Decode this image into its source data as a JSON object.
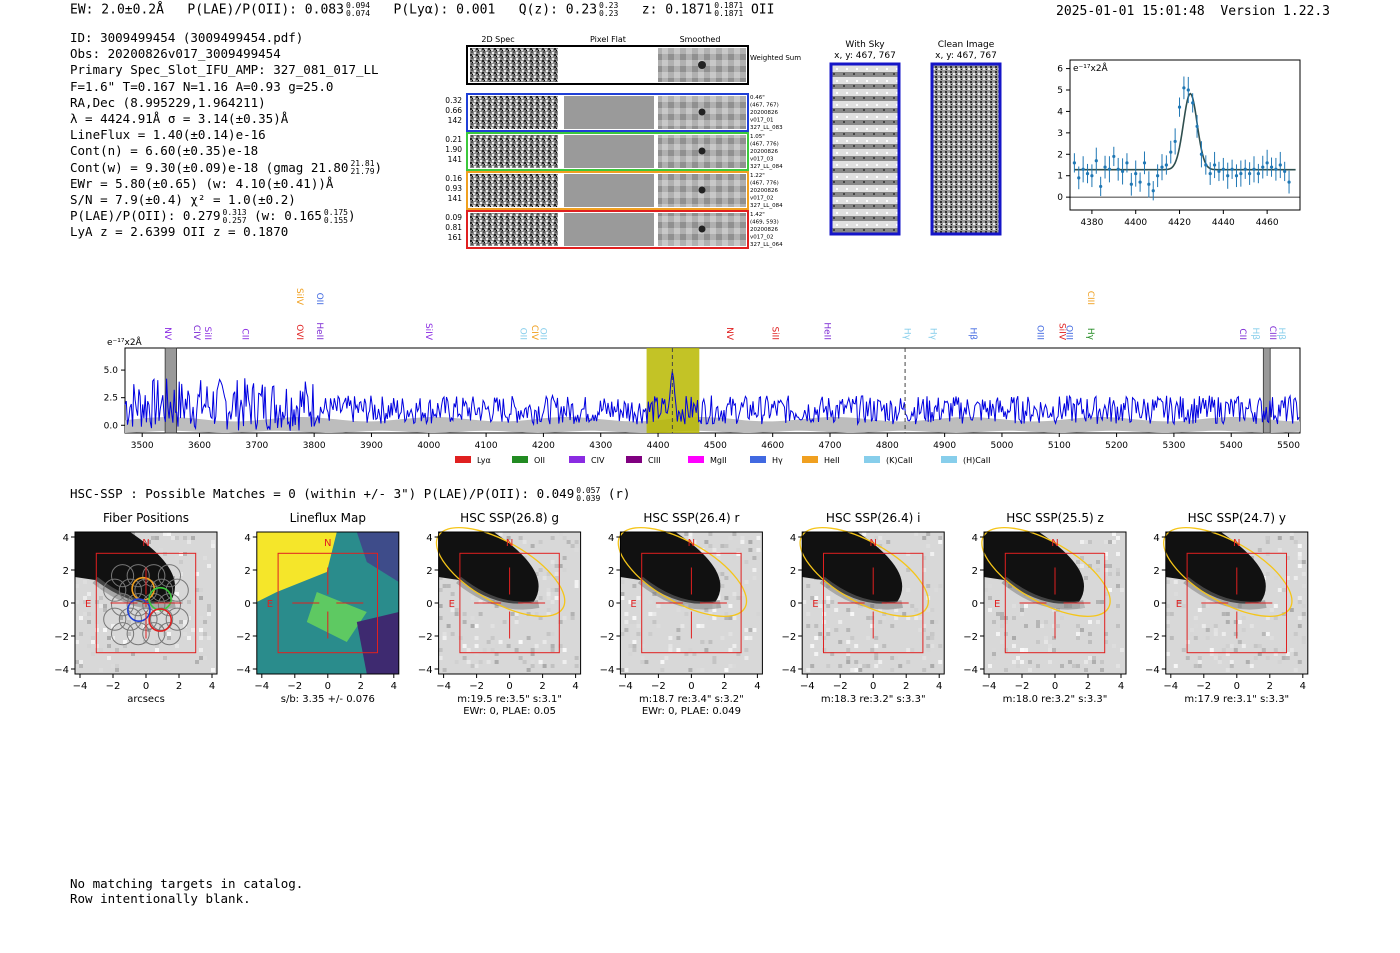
{
  "header": {
    "ew": "EW: 2.0±0.2Å",
    "plae_label": "P(LAE)/P(OII): 0.083",
    "plae_hi": "0.094",
    "plae_lo": "0.074",
    "plya": "P(Lyα): 0.001",
    "q_label": "Q(z): 0.23",
    "q_hi": "0.23",
    "q_lo": "0.23",
    "z_label": "z: 0.1871",
    "z_hi": "0.1871",
    "z_lo": "0.1871",
    "z_line": "OII",
    "timestamp": "2025-01-01 15:01:48",
    "version": "Version 1.22.3"
  },
  "info": {
    "id": "ID: 3009499454 (3009499454.pdf)",
    "obs": "Obs: 20200826v017_3009499454",
    "primary": "Primary Spec_Slot_IFU_AMP: 327_081_017_LL",
    "params": "F=1.6\"  T=0.167  N=1.16  A=0.93  g=25.0",
    "radec": "RA,Dec (8.995229,1.964211)",
    "lambda": "λ = 4424.91Å   σ = 3.14(±0.35)Å",
    "lineflux": "LineFlux = 1.40(±0.14)e-16",
    "contn": "Cont(n) = 6.60(±0.35)e-18",
    "contw": "Cont(w) = 9.30(±0.09)e-18 (gmag 21.80",
    "contw_hi": "21.81",
    "contw_lo": "21.79",
    "contw_end": ")",
    "ewr": "EWr = 5.80(±0.65) (w: 4.10(±0.41))Å",
    "sn": "S/N = 7.9(±0.4)  χ² = 1.0(±0.2)",
    "plae2": "P(LAE)/P(OII): 0.279",
    "plae2_hi": "0.313",
    "plae2_lo": "0.257",
    "plae2_w": " (w: 0.165",
    "plae2_w_hi": "0.175",
    "plae2_w_lo": "0.155",
    "plae2_end": ")",
    "lyaz": "LyA z = 2.6399   OII z = 0.1870"
  },
  "cutouts": {
    "col_labels": [
      "2D Spec",
      "Pixel Flat",
      "Smoothed"
    ],
    "weighted_sum": "Weighted Sum",
    "rows": [
      {
        "vals": [
          "0.32",
          "0.66",
          "142"
        ],
        "meta": [
          "0.46\"",
          "(467, 767)",
          "20200826",
          "v017_01",
          "327_LL_083"
        ],
        "color": "#1f3fd6"
      },
      {
        "vals": [
          "0.21",
          "1.90",
          "141"
        ],
        "meta": [
          "1.05\"",
          "(467, 776)",
          "20200826",
          "v017_03",
          "327_LL_084"
        ],
        "color": "#3cc83c"
      },
      {
        "vals": [
          "0.16",
          "0.93",
          "141"
        ],
        "meta": [
          "1.22\"",
          "(467, 776)",
          "20200826",
          "v017_02",
          "327_LL_084"
        ],
        "color": "#f0a020"
      },
      {
        "vals": [
          "0.09",
          "0.81",
          "161"
        ],
        "meta": [
          "1.42\"",
          "(469, 593)",
          "20200826",
          "v017_02",
          "327_LL_064"
        ],
        "color": "#e02020"
      }
    ],
    "with_sky": "With Sky",
    "with_sky_xy": "x, y: 467, 767",
    "clean": "Clean Image",
    "clean_xy": "x, y: 467, 767"
  },
  "line_fit": {
    "ylabel": "e⁻¹⁷x2Å",
    "x_ticks": [
      4380,
      4400,
      4420,
      4440,
      4460
    ],
    "y_ticks": [
      0,
      1,
      2,
      3,
      4,
      5,
      6
    ],
    "xlim": [
      4370,
      4475
    ],
    "ylim": [
      -0.6,
      6.4
    ],
    "points_x": [
      4372,
      4374,
      4376,
      4378,
      4380,
      4382,
      4384,
      4386,
      4388,
      4390,
      4392,
      4394,
      4396,
      4398,
      4400,
      4402,
      4404,
      4406,
      4408,
      4410,
      4412,
      4414,
      4416,
      4418,
      4420,
      4422,
      4424,
      4426,
      4428,
      4430,
      4432,
      4434,
      4436,
      4438,
      4440,
      4442,
      4444,
      4446,
      4448,
      4450,
      4452,
      4454,
      4456,
      4458,
      4460,
      4462,
      4464,
      4466,
      4468,
      4470
    ],
    "points_y": [
      1.6,
      0.9,
      1.3,
      1.1,
      1.0,
      1.7,
      0.5,
      1.4,
      1.3,
      1.9,
      1.3,
      1.2,
      1.6,
      0.6,
      1.1,
      0.7,
      1.6,
      0.6,
      0.3,
      1.0,
      1.4,
      1.5,
      2.1,
      2.6,
      4.2,
      5.1,
      5.0,
      4.4,
      3.3,
      2.0,
      1.5,
      1.1,
      1.5,
      1.2,
      1.3,
      1.0,
      1.3,
      1.0,
      1.1,
      1.3,
      1.1,
      1.3,
      1.1,
      1.4,
      1.6,
      1.4,
      1.3,
      1.5,
      1.2,
      0.7
    ],
    "fit_center": 4424.91,
    "fit_sigma": 3.14,
    "fit_amp": 3.55,
    "fit_cont": 1.28
  },
  "spectrum": {
    "ylabel": "e⁻¹⁷x2Å",
    "x_ticks": [
      3500,
      3600,
      3700,
      3800,
      3900,
      4000,
      4100,
      4200,
      4300,
      4400,
      4500,
      4600,
      4700,
      4800,
      4900,
      5000,
      5100,
      5200,
      5300,
      5400,
      5500
    ],
    "y_ticks": [
      "0.0",
      "2.5",
      "5.0"
    ],
    "xlim": [
      3470,
      5520
    ],
    "ylim": [
      -0.7,
      7.0
    ],
    "highlight_range": [
      4380,
      4472
    ],
    "dashed_lines": [
      4425,
      4831
    ],
    "hatched_ranges": [
      [
        3540,
        3560
      ],
      [
        5456,
        5468
      ]
    ],
    "line_labels": [
      {
        "text": "NV",
        "x": 3540,
        "color": "#8a2be2",
        "row": 1
      },
      {
        "text": "CIV",
        "x": 3590,
        "color": "#7d2bd4",
        "row": 1
      },
      {
        "text": "SiII",
        "x": 3610,
        "color": "#8a2be2",
        "row": 1
      },
      {
        "text": "CII",
        "x": 3675,
        "color": "#8a2be2",
        "row": 1
      },
      {
        "text": "SiIV",
        "x": 3770,
        "color": "#f0a020",
        "row": 0
      },
      {
        "text": "OVI",
        "x": 3770,
        "color": "#e02020",
        "row": 1
      },
      {
        "text": "OII",
        "x": 3805,
        "color": "#4169e1",
        "row": 0
      },
      {
        "text": "HeII",
        "x": 3805,
        "color": "#7d2bd4",
        "row": 1
      },
      {
        "text": "SiIV",
        "x": 3995,
        "color": "#8a2be2",
        "row": 1
      },
      {
        "text": "OII",
        "x": 4160,
        "color": "#87ceeb",
        "row": 1
      },
      {
        "text": "CIV",
        "x": 4180,
        "color": "#f0a020",
        "row": 1
      },
      {
        "text": "OII",
        "x": 4195,
        "color": "#87ceeb",
        "row": 1
      },
      {
        "text": "NV",
        "x": 4520,
        "color": "#e02020",
        "row": 1
      },
      {
        "text": "SiII",
        "x": 4600,
        "color": "#e02020",
        "row": 1
      },
      {
        "text": "HeII",
        "x": 4690,
        "color": "#7d2bd4",
        "row": 1
      },
      {
        "text": "Hγ",
        "x": 4830,
        "color": "#87ceeb",
        "row": 1
      },
      {
        "text": "Hγ",
        "x": 4875,
        "color": "#87ceeb",
        "row": 1
      },
      {
        "text": "Hβ",
        "x": 4945,
        "color": "#4169e1",
        "row": 1
      },
      {
        "text": "OIII",
        "x": 5062,
        "color": "#4169e1",
        "row": 1
      },
      {
        "text": "SiIV",
        "x": 5100,
        "color": "#e02020",
        "row": 1
      },
      {
        "text": "OIII",
        "x": 5113,
        "color": "#4169e1",
        "row": 1
      },
      {
        "text": "CIII",
        "x": 5150,
        "color": "#f0a020",
        "row": 0
      },
      {
        "text": "Hγ",
        "x": 5150,
        "color": "#228b22",
        "row": 1
      },
      {
        "text": "CII",
        "x": 5415,
        "color": "#7d2bd4",
        "row": 1
      },
      {
        "text": "Hβ",
        "x": 5438,
        "color": "#87ceeb",
        "row": 1
      },
      {
        "text": "CIII",
        "x": 5468,
        "color": "#7d2bd4",
        "row": 1
      },
      {
        "text": "Hβ",
        "x": 5483,
        "color": "#87ceeb",
        "row": 1
      }
    ],
    "legend": [
      {
        "label": "Lyα",
        "color": "#e02020"
      },
      {
        "label": "OII",
        "color": "#228b22"
      },
      {
        "label": "CIV",
        "color": "#8a2be2"
      },
      {
        "label": "CIII",
        "color": "#800080"
      },
      {
        "label": "MgII",
        "color": "#ff00ff"
      },
      {
        "label": "Hγ",
        "color": "#4169e1"
      },
      {
        "label": "HeII",
        "color": "#f0a020"
      },
      {
        "label": "(K)CaII",
        "color": "#87ceeb"
      },
      {
        "label": "(H)CaII",
        "color": "#87ceeb"
      }
    ]
  },
  "hsc": {
    "header": "HSC-SSP : Possible Matches = 0 (within +/- 3\")  P(LAE)/P(OII): 0.049",
    "header_hi": "0.057",
    "header_lo": "0.039",
    "header_end": " (r)",
    "ticks": [
      "−4",
      "−2",
      "0",
      "2",
      "4"
    ],
    "panels": [
      {
        "title": "Fiber Positions",
        "caption1": "arcsecs",
        "caption2": ""
      },
      {
        "title": "Lineflux Map",
        "caption1": "s/b: 3.35 +/- 0.076",
        "caption2": ""
      },
      {
        "title": "HSC SSP(26.8) g",
        "caption1": "m:19.5  re:3.5\"  s:3.1\"",
        "caption2": "EWr: 0, PLAE: 0.05"
      },
      {
        "title": "HSC SSP(26.4) r",
        "caption1": "m:18.7  re:3.4\"  s:3.2\"",
        "caption2": "EWr: 0, PLAE: 0.049"
      },
      {
        "title": "HSC SSP(26.4) i",
        "caption1": "m:18.3  re:3.2\"  s:3.3\"",
        "caption2": ""
      },
      {
        "title": "HSC SSP(25.5) z",
        "caption1": "m:18.0  re:3.2\"  s:3.3\"",
        "caption2": ""
      },
      {
        "title": "HSC SSP(24.7) y",
        "caption1": "m:17.9  re:3.1\"  s:3.3\"",
        "caption2": ""
      }
    ],
    "compass_n": "N",
    "compass_e": "E"
  },
  "chart_data": [
    {
      "type": "scatter",
      "title": "",
      "xlabel": "",
      "ylabel": "e⁻¹⁷x2Å",
      "note": "Emission line fit with gaussian; points with errorbars, fit curve",
      "xlim": [
        4370,
        4475
      ],
      "ylim": [
        -0.6,
        6.4
      ]
    },
    {
      "type": "line",
      "title": "",
      "xlabel": "",
      "ylabel": "e⁻¹⁷x2Å",
      "xlim": [
        3470,
        5520
      ],
      "ylim": [
        -0.7,
        7.0
      ]
    }
  ],
  "footer": {
    "line1": "No matching targets in catalog.",
    "line2": "Row intentionally blank."
  }
}
